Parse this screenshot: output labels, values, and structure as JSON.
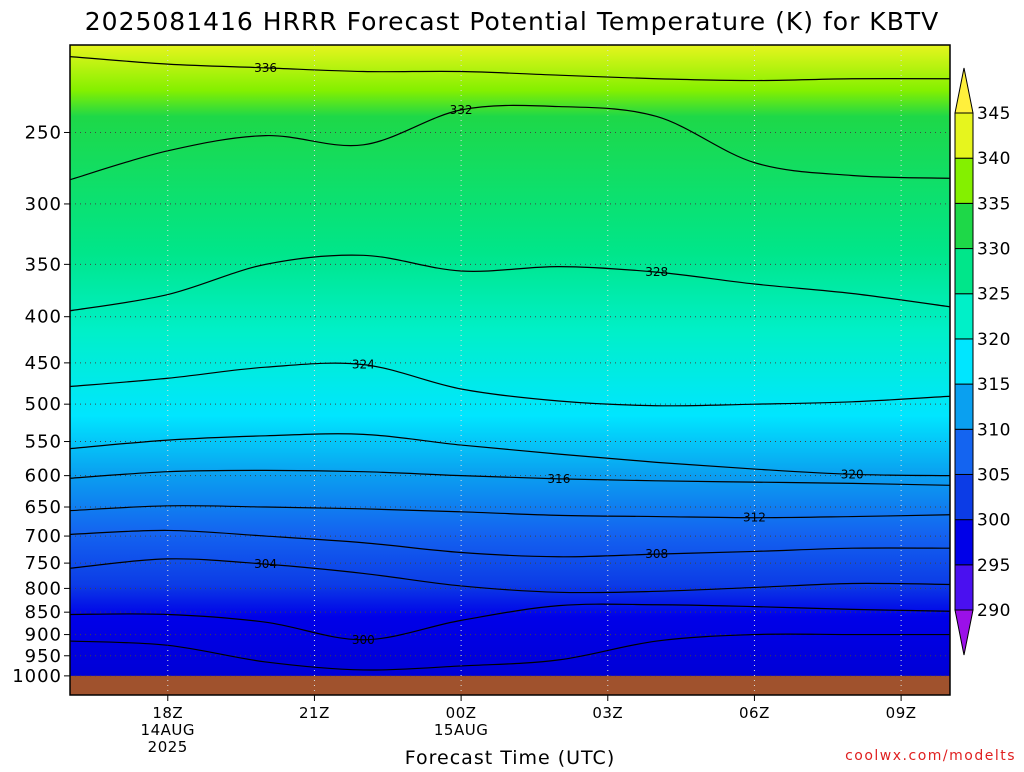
{
  "title": "2025081416 HRRR Forecast Potential Temperature (K) for KBTV",
  "credit": "coolwx.com/modelts",
  "chart_data": {
    "type": "contour",
    "x_title": "Forecast Time (UTC)",
    "x_ticks": [
      {
        "hour": 18,
        "label": "18Z",
        "sub1": "14AUG",
        "sub2": "2025"
      },
      {
        "hour": 21,
        "label": "21Z",
        "sub1": "",
        "sub2": ""
      },
      {
        "hour": 24,
        "label": "00Z",
        "sub1": "15AUG",
        "sub2": ""
      },
      {
        "hour": 27,
        "label": "03Z",
        "sub1": "",
        "sub2": ""
      },
      {
        "hour": 30,
        "label": "06Z",
        "sub1": "",
        "sub2": ""
      },
      {
        "hour": 33,
        "label": "09Z",
        "sub1": "",
        "sub2": ""
      }
    ],
    "x_range_hours": [
      16,
      34
    ],
    "y_axis": "pressure (hPa), log scale, inverted",
    "y_range_hpa": [
      1050,
      200
    ],
    "y_ticks": [
      250,
      300,
      350,
      400,
      450,
      500,
      550,
      600,
      650,
      700,
      750,
      800,
      850,
      900,
      950,
      1000
    ],
    "grid": true,
    "terrain_below_hpa": 1000,
    "terrain_color": "#a0522d",
    "colorbar": {
      "levels": [
        290,
        295,
        300,
        305,
        310,
        315,
        320,
        325,
        330,
        335,
        340,
        345
      ],
      "labels": [
        "290",
        "295",
        "300",
        "305",
        "310",
        "315",
        "320",
        "325",
        "330",
        "335",
        "340",
        "345"
      ],
      "colors": [
        "#9b10e8",
        "#4a10f0",
        "#0000e8",
        "#0c3ce6",
        "#1464f0",
        "#0aa0f0",
        "#00e6ff",
        "#00f0c8",
        "#00e68a",
        "#1ed848",
        "#84f000",
        "#e6f51e",
        "#fff03c"
      ]
    },
    "isentropes": [
      {
        "theta": 336,
        "label": "336",
        "pressure_hpa": [
          206,
          210,
          212,
          214,
          214,
          216,
          218,
          219,
          218,
          218
        ]
      },
      {
        "theta": 332,
        "label": "332",
        "pressure_hpa": [
          282,
          262,
          252,
          258,
          236,
          234,
          240,
          270,
          279,
          281
        ]
      },
      {
        "theta": 328,
        "label": "328",
        "pressure_hpa": [
          394,
          378,
          350,
          342,
          356,
          352,
          357,
          368,
          377,
          390
        ]
      },
      {
        "theta": 324,
        "label": "324",
        "pressure_hpa": [
          478,
          468,
          455,
          452,
          481,
          496,
          502,
          500,
          497,
          490
        ]
      },
      {
        "theta": 320,
        "label": "320",
        "pressure_hpa": [
          560,
          548,
          542,
          540,
          555,
          568,
          580,
          590,
          598,
          600
        ]
      },
      {
        "theta": 316,
        "label": "316",
        "pressure_hpa": [
          604,
          594,
          592,
          594,
          600,
          605,
          608,
          610,
          612,
          615
        ]
      },
      {
        "theta": 312,
        "label": "312",
        "pressure_hpa": [
          656,
          648,
          650,
          653,
          658,
          664,
          666,
          668,
          666,
          663
        ]
      },
      {
        "theta": 308,
        "label": "308",
        "pressure_hpa": [
          697,
          690,
          700,
          712,
          730,
          738,
          733,
          728,
          722,
          722
        ]
      },
      {
        "theta": 304,
        "label": "304",
        "pressure_hpa": [
          760,
          742,
          752,
          770,
          795,
          808,
          806,
          798,
          790,
          792
        ]
      },
      {
        "theta": 300,
        "label": "300",
        "pressure_hpa": [
          855,
          855,
          872,
          912,
          868,
          836,
          834,
          838,
          844,
          848
        ]
      },
      {
        "theta": 298,
        "label": "",
        "pressure_hpa": [
          915,
          925,
          965,
          985,
          975,
          960,
          915,
          900,
          900,
          900
        ]
      }
    ],
    "hours_sampled": [
      16,
      18,
      20,
      22,
      24,
      26,
      28,
      30,
      32,
      34
    ]
  }
}
